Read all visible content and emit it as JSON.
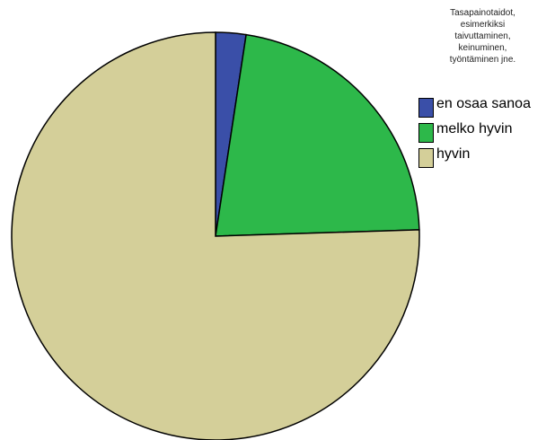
{
  "chart_data": {
    "type": "pie",
    "legend_title": [
      "Tasapainotaidot,",
      "esimerkiksi",
      "taivuttaminen,",
      "keinuminen,",
      "työntäminen jne."
    ],
    "categories": [
      "en osaa sanoa",
      "melko hyvin",
      "hyvin"
    ],
    "values": [
      2.4,
      22.1,
      75.5
    ],
    "colors": [
      "#3a4fa8",
      "#2db84a",
      "#d4cf99"
    ]
  }
}
